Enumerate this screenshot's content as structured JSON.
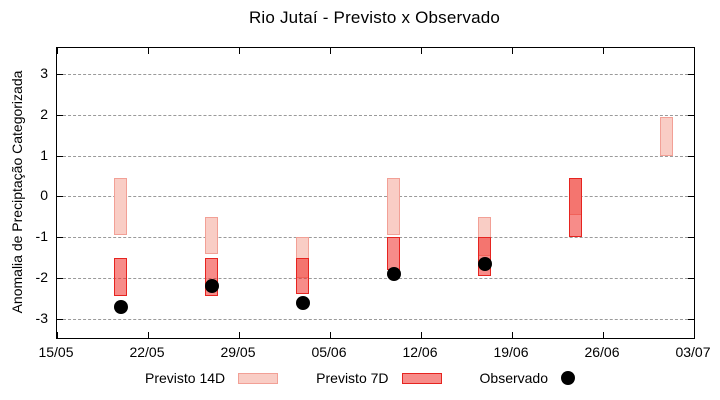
{
  "title": "Rio Jutaí - Previsto x Observado",
  "chart_data": {
    "type": "bar",
    "title": "Rio Jutaí - Previsto x Observado",
    "xlabel": "",
    "ylabel": "Anomalia de Preciptação Categorizada",
    "ylim": [
      -3.47,
      3.64
    ],
    "yticks": [
      3,
      2,
      1,
      0,
      -1,
      -2,
      -3
    ],
    "x_span_days": 49,
    "xticks_every_days": 7,
    "xtick_labels": [
      "15/05",
      "22/05",
      "29/05",
      "05/06",
      "12/06",
      "19/06",
      "26/06",
      "03/07"
    ],
    "grid": true,
    "grid_color": "#9a9a9a",
    "legend_position": "bottom",
    "bar_width_days": 1,
    "series": [
      {
        "name": "Previsto 14D",
        "type": "range-bar",
        "fill": "#f9cdc5",
        "border": "#f2a096",
        "points": [
          {
            "day": 4.9,
            "hi": 0.45,
            "lo": -0.95
          },
          {
            "day": 11.9,
            "hi": -0.5,
            "lo": -1.4
          },
          {
            "day": 18.9,
            "hi": -1.0,
            "lo": -2.0
          },
          {
            "day": 25.9,
            "hi": 0.45,
            "lo": -0.95
          },
          {
            "day": 32.9,
            "hi": -0.5,
            "lo": -1.45
          },
          {
            "day": 39.9,
            "hi": 0.45,
            "lo": -0.45
          },
          {
            "day": 46.9,
            "hi": 1.95,
            "lo": 1.0
          }
        ]
      },
      {
        "name": "Previsto 7D",
        "type": "range-bar",
        "fill": "rgba(240,45,40,0.55)",
        "fill_base_hex": "#f02d28",
        "border": "#e62420",
        "points": [
          {
            "day": 4.9,
            "hi": -1.5,
            "lo": -2.45
          },
          {
            "day": 11.9,
            "hi": -1.5,
            "lo": -2.45
          },
          {
            "day": 18.9,
            "hi": -1.5,
            "lo": -2.4
          },
          {
            "day": 25.9,
            "hi": -1.0,
            "lo": -1.8
          },
          {
            "day": 32.9,
            "hi": -1.0,
            "lo": -1.95
          },
          {
            "day": 39.9,
            "hi": 0.45,
            "lo": -1.0
          }
        ]
      },
      {
        "name": "Observado",
        "type": "scatter",
        "fill": "#000000",
        "marker": "filled-circle",
        "points": [
          {
            "day": 4.9,
            "v": -2.7
          },
          {
            "day": 11.9,
            "v": -2.2
          },
          {
            "day": 18.9,
            "v": -2.6
          },
          {
            "day": 25.9,
            "v": -1.9
          },
          {
            "day": 32.9,
            "v": -1.65
          }
        ]
      }
    ]
  },
  "legend": {
    "previsto_14d": "Previsto 14D",
    "previsto_7d": "Previsto 7D",
    "observado": "Observado"
  },
  "icons": {
    "previsto_14d_swatch": "light-pink-rectangle",
    "previsto_7d_swatch": "red-bordered-rectangle",
    "observado_marker": "●"
  }
}
